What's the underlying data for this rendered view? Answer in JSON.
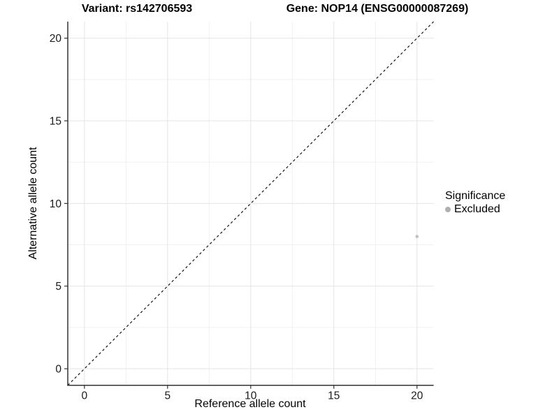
{
  "chart_data": {
    "type": "scatter",
    "title_left": "Variant: rs142706593",
    "title_right": "Gene: NOP14 (ENSG00000087269)",
    "xlabel": "Reference allele count",
    "ylabel": "Alternative allele count",
    "xlim": [
      -1,
      21
    ],
    "ylim": [
      -1,
      21
    ],
    "x_ticks": [
      0,
      5,
      10,
      15,
      20
    ],
    "y_ticks": [
      0,
      5,
      10,
      15,
      20
    ],
    "x_minor_ticks": [
      2.5,
      7.5,
      12.5,
      17.5
    ],
    "y_minor_ticks": [
      2.5,
      7.5,
      12.5,
      17.5
    ],
    "grid": "on",
    "identity_line": {
      "type": "dashed",
      "from": [
        -1,
        -1
      ],
      "to": [
        21,
        21
      ],
      "color": "#000000"
    },
    "points": [
      {
        "x": 20,
        "y": 8,
        "significance": "Excluded",
        "color": "#c2c2c2"
      }
    ],
    "legend": {
      "position": "right",
      "title": "Significance",
      "items": [
        {
          "label": "Excluded",
          "color": "#b0b0b0"
        }
      ]
    },
    "colors": {
      "grid_major": "#e4e4e4",
      "grid_minor": "#f0f0f0",
      "axis_line": "#333333",
      "tick_mark": "#333333",
      "tick_label": "#1a1a1a"
    }
  }
}
